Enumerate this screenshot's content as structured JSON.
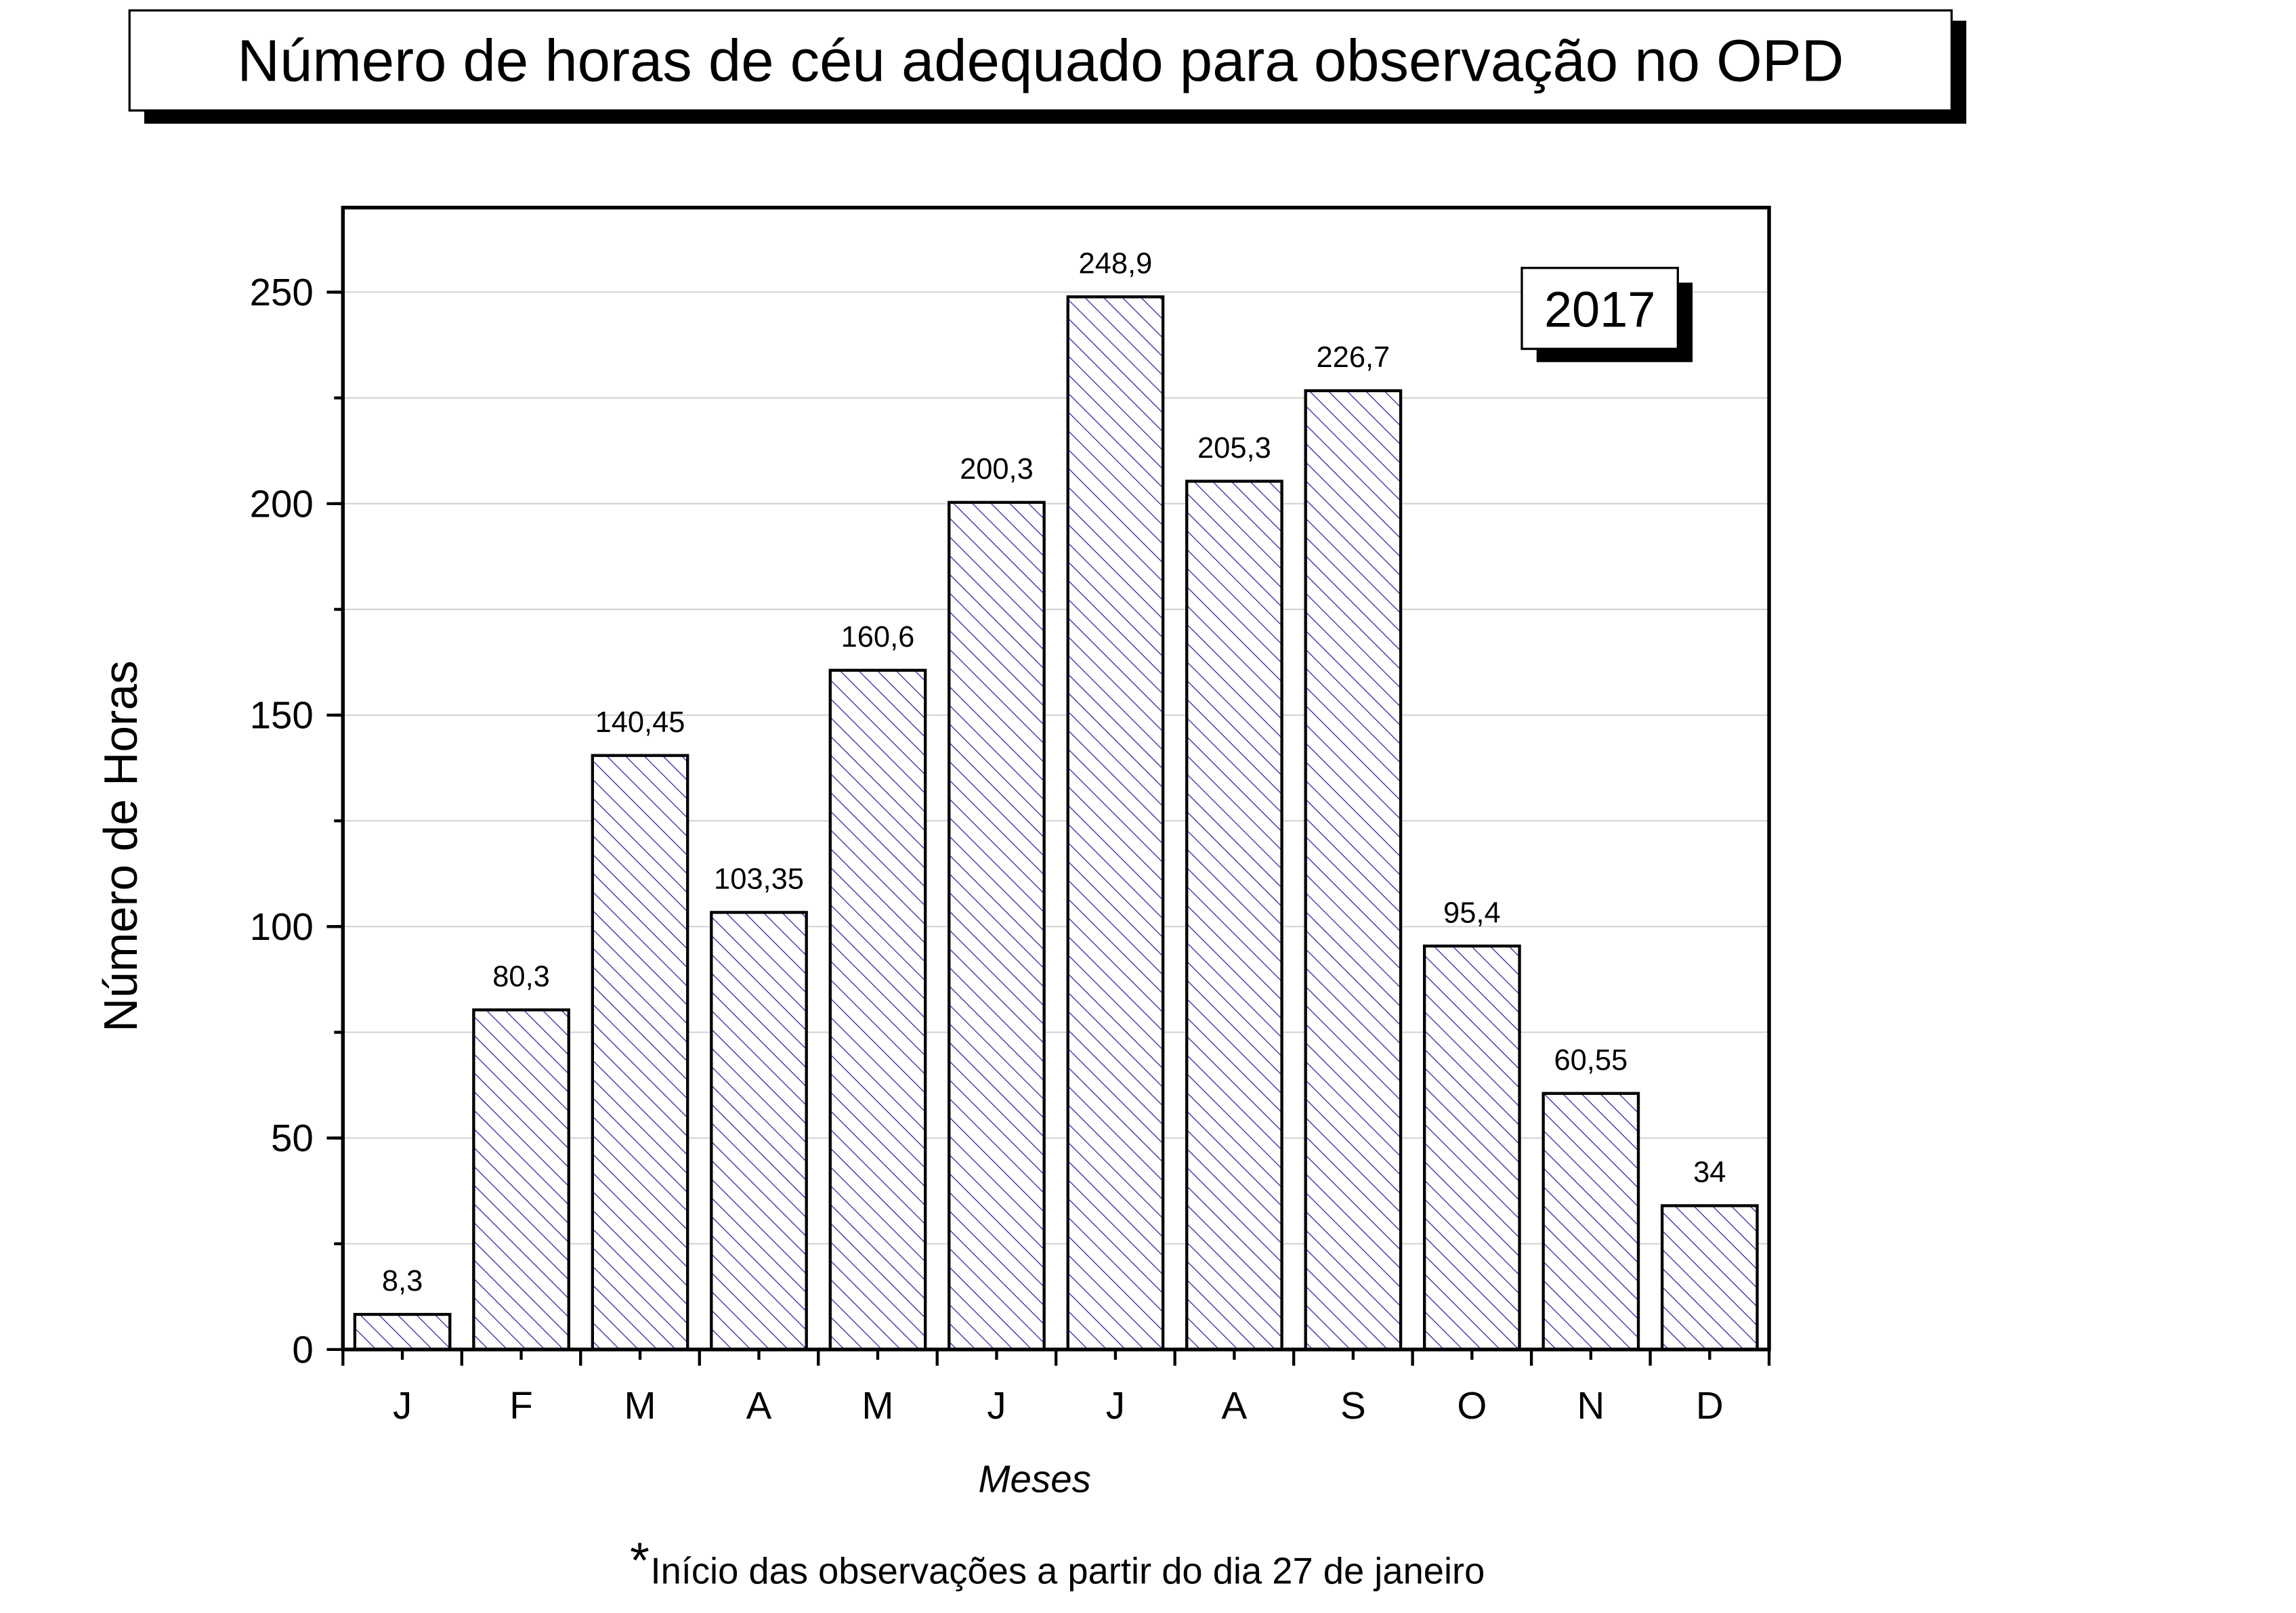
{
  "title": "Número de horas de céu adequado para observação no OPD",
  "note_asterisk": "*",
  "note": "Início das observações a partir do dia 27 de janeiro",
  "year_badge": "2017",
  "chart_data": {
    "type": "bar",
    "title": "Número de horas de céu adequado para observação no OPD",
    "xlabel": "Meses",
    "ylabel": "Número de Horas",
    "categories": [
      "J",
      "F",
      "M",
      "A",
      "M",
      "J",
      "J",
      "A",
      "S",
      "O",
      "N",
      "D"
    ],
    "values": [
      8.3,
      80.3,
      140.45,
      103.35,
      160.6,
      200.3,
      248.9,
      205.3,
      226.7,
      95.4,
      60.55,
      34
    ],
    "value_labels": [
      "8,3",
      "80,3",
      "140,45",
      "103,35",
      "160,6",
      "200,3",
      "248,9",
      "205,3",
      "226,7",
      "95,4",
      "60,55",
      "34"
    ],
    "ylim": [
      0,
      270
    ],
    "yticks": [
      0,
      50,
      100,
      150,
      200,
      250
    ],
    "grid": true,
    "bar_fill": "hatched",
    "hatch_color": "#1a1aa8",
    "legend": "none"
  }
}
